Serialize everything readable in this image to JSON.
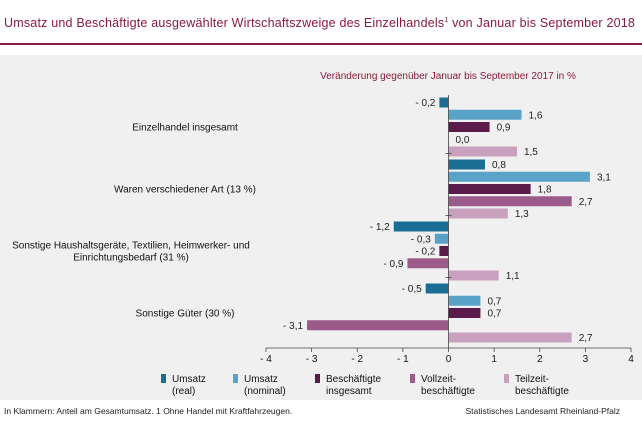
{
  "title": "Umsatz und Beschäftigte ausgewählter Wirtschaftszweige des Einzelhandels",
  "title_sup": "1",
  "title_suffix": " von Januar bis September 2018",
  "footer_left": "In Klammern: Anteil am Gesamtumsatz. 1 Ohne Handel mit Kraftfahrzeugen.",
  "footer_right": "Statistisches Landesamt Rheinland-Pfalz",
  "chart_data": {
    "type": "bar",
    "orientation": "horizontal",
    "subtitle": "Veränderung gegenüber Januar bis September 2017 in %",
    "categories": [
      [
        "Einzelhandel insgesamt"
      ],
      [
        "Waren verschiedener Art (13 %)"
      ],
      [
        "Sonstige Haushaltsgeräte, Textilien, Heimwerker- und",
        "Einrichtungsbedarf (31 %)"
      ],
      [
        "Sonstige Güter (30 %)"
      ]
    ],
    "series": [
      {
        "name": [
          "Umsatz",
          "(real)"
        ],
        "color": "#1a6e96",
        "values": [
          -0.2,
          0.8,
          -1.2,
          -0.5
        ],
        "labels": [
          "- 0,2",
          "0,8",
          "- 1,2",
          "- 0,5"
        ]
      },
      {
        "name": [
          "Umsatz",
          "(nominal)"
        ],
        "color": "#5aa3c8",
        "values": [
          1.6,
          3.1,
          -0.3,
          0.7
        ],
        "labels": [
          "1,6",
          "3,1",
          "- 0,3",
          "0,7"
        ]
      },
      {
        "name": [
          "Beschäftigte",
          "insgesamt"
        ],
        "color": "#5a1a4a",
        "values": [
          0.9,
          1.8,
          -0.2,
          0.7
        ],
        "labels": [
          "0,9",
          "1,8",
          "- 0,2",
          "0,7"
        ]
      },
      {
        "name": [
          "Vollzeit-",
          "beschäftigte"
        ],
        "color": "#9a5a8a",
        "values": [
          0.0,
          2.7,
          -0.9,
          -3.1
        ],
        "labels": [
          "0,0",
          "2,7",
          "- 0,9",
          "- 3,1"
        ]
      },
      {
        "name": [
          "Teilzeit-",
          "beschäftigte"
        ],
        "color": "#c9a0bd",
        "values": [
          1.5,
          1.3,
          1.1,
          2.7
        ],
        "labels": [
          "1,5",
          "1,3",
          "1,1",
          "2,7"
        ]
      }
    ],
    "xlim": [
      -4,
      4
    ],
    "xticks": [
      -4,
      -3,
      -2,
      -1,
      0,
      1,
      2,
      3,
      4
    ],
    "xtick_labels": [
      "- 4",
      "- 3",
      "- 2",
      "- 1",
      "0",
      "1",
      "2",
      "3",
      "4"
    ],
    "grid": false,
    "legend_position": "bottom"
  }
}
